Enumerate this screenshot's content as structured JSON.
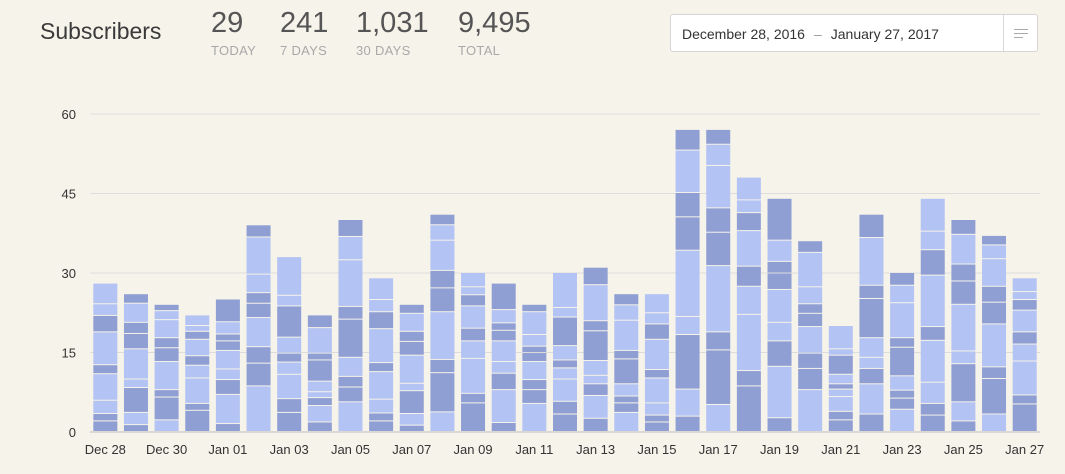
{
  "header": {
    "title": "Subscribers",
    "stats": [
      {
        "value": "29",
        "label": "TODAY"
      },
      {
        "value": "241",
        "label": "7 DAYS"
      },
      {
        "value": "1,031",
        "label": "30 DAYS"
      },
      {
        "value": "9,495",
        "label": "TOTAL"
      }
    ]
  },
  "date_range": {
    "start": "December 28, 2016",
    "separator": "–",
    "end": "January 27, 2017",
    "menu_icon": "hamburger-menu-icon"
  },
  "colors": {
    "background": "#f6f3ea",
    "series_dark": "#8f9fd3",
    "series_light": "#b3c3f3",
    "grid": "#dcdcdc"
  },
  "chart_data": {
    "type": "bar",
    "stacked": true,
    "categories": [
      "Dec 28",
      "Dec 29",
      "Dec 30",
      "Dec 31",
      "Jan 01",
      "Jan 02",
      "Jan 03",
      "Jan 04",
      "Jan 05",
      "Jan 06",
      "Jan 07",
      "Jan 08",
      "Jan 09",
      "Jan 10",
      "Jan 11",
      "Jan 12",
      "Jan 13",
      "Jan 14",
      "Jan 15",
      "Jan 16",
      "Jan 17",
      "Jan 18",
      "Jan 19",
      "Jan 20",
      "Jan 21",
      "Jan 22",
      "Jan 23",
      "Jan 24",
      "Jan 25",
      "Jan 26",
      "Jan 27"
    ],
    "x_tick_labels": [
      "Dec 28",
      "Dec 30",
      "Jan 01",
      "Jan 03",
      "Jan 05",
      "Jan 07",
      "Jan 09",
      "Jan 11",
      "Jan 13",
      "Jan 15",
      "Jan 17",
      "Jan 19",
      "Jan 21",
      "Jan 23",
      "Jan 25",
      "Jan 27"
    ],
    "values": [
      28,
      26,
      24,
      22,
      25,
      39,
      33,
      22,
      40,
      29,
      24,
      41,
      30,
      28,
      24,
      30,
      31,
      26,
      26,
      57,
      57,
      48,
      44,
      36,
      20,
      41,
      30,
      44,
      40,
      37,
      29
    ],
    "ylim": [
      0,
      60
    ],
    "yticks": [
      0,
      15,
      30,
      45,
      60
    ],
    "grid": true,
    "legend": "none"
  }
}
